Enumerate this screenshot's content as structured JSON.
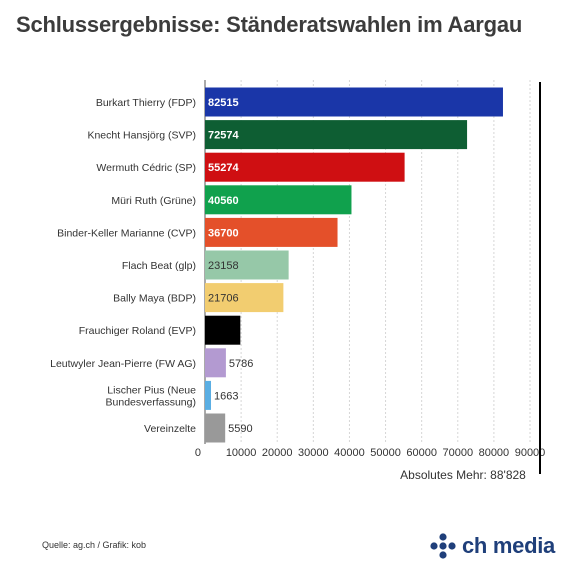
{
  "title": "Schlussergebnisse: Ständeratswahlen im Aargau",
  "footer": {
    "source": "Quelle: ag.ch / Grafik: kob",
    "brand": "ch media"
  },
  "chart_data": {
    "type": "bar",
    "orientation": "horizontal",
    "categories": [
      "Burkart Thierry (FDP)",
      "Knecht Hansjörg (SVP)",
      "Wermuth Cédric (SP)",
      "Müri Ruth (Grüne)",
      "Binder-Keller Marianne (CVP)",
      "Flach Beat (glp)",
      "Bally Maya (BDP)",
      "Frauchiger Roland (EVP)",
      "Leutwyler Jean-Pierre (FW AG)",
      "Lischer Pius (Neue Bundesverfassung)",
      "Vereinzelte"
    ],
    "values": [
      82515,
      72574,
      55274,
      40560,
      36700,
      23158,
      21706,
      9784,
      5786,
      1663,
      5590
    ],
    "colors": [
      "#1a36a8",
      "#0e5e33",
      "#cf0f12",
      "#10a14d",
      "#e4502a",
      "#96c8a8",
      "#f2cd70",
      "#000000",
      "#b39ad1",
      "#5aaee3",
      "#999999"
    ],
    "label_colors": [
      "#ffffff",
      "#ffffff",
      "#ffffff",
      "#ffffff",
      "#ffffff",
      "#333333",
      "#333333",
      "#ffffff",
      "#333333",
      "#333333",
      "#333333"
    ],
    "xlim": [
      0,
      90000
    ],
    "xticks": [
      0,
      10000,
      20000,
      30000,
      40000,
      50000,
      60000,
      70000,
      80000,
      90000
    ],
    "grid": true,
    "reference_line": {
      "value": 88828,
      "label": "Absolutes Mehr: 88'828",
      "color": "#000000"
    }
  }
}
